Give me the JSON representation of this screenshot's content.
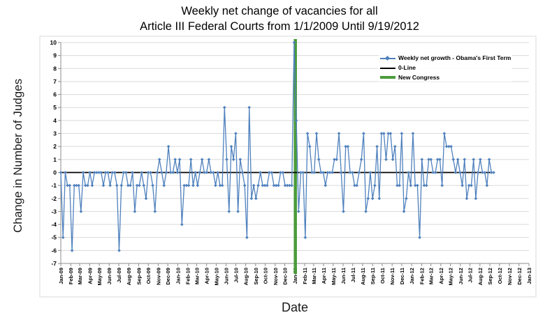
{
  "title": {
    "line1": "Weekly net change of vacancies for all",
    "line2": "Article III Federal Courts from 1/1/2009 Until 9/19/2012"
  },
  "y_axis": {
    "label": "Change in Number of Judges",
    "ticks": [
      10,
      9,
      8,
      7,
      6,
      5,
      4,
      3,
      2,
      1,
      0,
      -1,
      -2,
      -3,
      -4,
      -5,
      -6,
      -7
    ]
  },
  "x_axis": {
    "label": "Date",
    "tick_labels": [
      "Jan-09",
      "Feb-09",
      "Mar-09",
      "Apr-09",
      "May-09",
      "Jun-09",
      "Jul-09",
      "Aug-09",
      "Sep-09",
      "Oct-09",
      "Nov-09",
      "Dec-09",
      "Jan-10",
      "Feb-10",
      "Mar-10",
      "Apr-10",
      "May-10",
      "Jun-10",
      "Jul-10",
      "Aug-10",
      "Sep-10",
      "Oct-10",
      "Nov-10",
      "Dec-10",
      "Jan-11",
      "Feb-11",
      "Mar-11",
      "Apr-11",
      "May-11",
      "Jun-11",
      "Jul-11",
      "Aug-11",
      "Sep-11",
      "Oct-11",
      "Nov-11",
      "Dec-11",
      "Jan-12",
      "Feb-12",
      "Mar-12",
      "Apr-12",
      "May-12",
      "Jun-12",
      "Jul-12",
      "Aug-12",
      "Sep-12",
      "Oct-12",
      "Nov-12",
      "Dec-12",
      "Jan-13"
    ]
  },
  "legend": {
    "items": [
      {
        "label": "Weekly net growth - Obama's First Term",
        "type": "line-marker",
        "color": "#4f81bd"
      },
      {
        "label": "0-Line",
        "type": "line",
        "color": "#000000"
      },
      {
        "label": "New Congress",
        "type": "thick-line",
        "color": "#4b9b3a"
      }
    ]
  },
  "colors": {
    "series": "#4f81bd",
    "zero_line": "#000000",
    "new_congress": "#4b9b3a",
    "gridline": "#d9d9d9",
    "axis": "#8c8c8c",
    "frame": "#d9d9d9",
    "text": "#000000"
  },
  "chart_data": {
    "type": "line",
    "title": "Weekly net change of vacancies for all Article III Federal Courts from 1/1/2009 Until 9/19/2012",
    "xlabel": "Date",
    "ylabel": "Change in Number of Judges",
    "ylim": [
      -7,
      10
    ],
    "grid": true,
    "legend_position": "top-right-inside",
    "x_start_date": "2009-01-01",
    "x_end_axis": "2013-01-01",
    "x_interval": "weekly",
    "series": [
      {
        "name": "Weekly net growth - Obama's First Term",
        "color": "#4f81bd",
        "marker": "diamond",
        "values": [
          0,
          -5,
          0,
          -1,
          -1,
          -6,
          -1,
          -1,
          -1,
          -3,
          0,
          -1,
          -1,
          0,
          -1,
          0,
          0,
          0,
          0,
          -1,
          0,
          0,
          -1,
          0,
          0,
          -1,
          -6,
          -1,
          0,
          0,
          -1,
          -1,
          0,
          -3,
          -1,
          -1,
          0,
          -1,
          -2,
          0,
          0,
          -1,
          -3,
          0,
          1,
          0,
          -1,
          0,
          2,
          0,
          0,
          1,
          0,
          1,
          -4,
          -1,
          -1,
          -1,
          1,
          -1,
          0,
          -1,
          0,
          1,
          0,
          0,
          1,
          0,
          0,
          -1,
          0,
          -1,
          -1,
          5,
          1,
          -3,
          2,
          1,
          3,
          -3,
          1,
          0,
          -1,
          -5,
          5,
          -2,
          -1,
          -2,
          -1,
          0,
          -1,
          -1,
          -1,
          0,
          0,
          -1,
          -1,
          -1,
          0,
          0,
          -1,
          -1,
          -1,
          -1,
          10,
          4,
          -3,
          0,
          0,
          -5,
          3,
          2,
          0,
          0,
          3,
          1,
          0,
          0,
          -1,
          0,
          0,
          0,
          1,
          1,
          3,
          0,
          -3,
          2,
          2,
          0,
          0,
          -1,
          -1,
          0,
          1,
          3,
          -3,
          -2,
          0,
          -2,
          -1,
          2,
          -2,
          3,
          3,
          1,
          3,
          3,
          1,
          2,
          -1,
          -1,
          3,
          -3,
          -2,
          0,
          -1,
          3,
          -1,
          -1,
          -5,
          1,
          -1,
          -1,
          1,
          1,
          0,
          0,
          1,
          1,
          -1,
          3,
          2,
          2,
          2,
          1,
          0,
          1,
          0,
          -1,
          1,
          -2,
          -1,
          -1,
          1,
          -2,
          0,
          1,
          0,
          0,
          -1,
          1,
          0,
          0
        ]
      }
    ],
    "annotations": [
      {
        "type": "hline",
        "y": 0,
        "label": "0-Line",
        "color": "#000000"
      },
      {
        "type": "vline",
        "date": "2011-01-03",
        "label": "New Congress",
        "color": "#4b9b3a"
      }
    ]
  }
}
